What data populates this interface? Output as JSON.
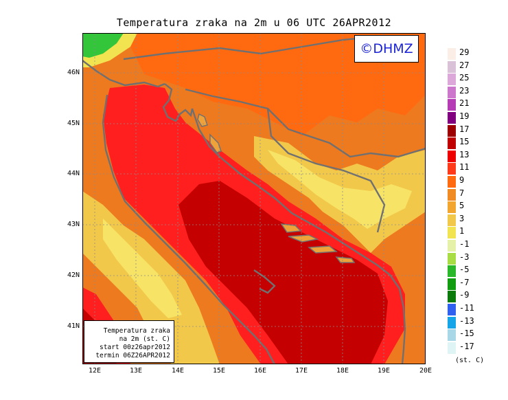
{
  "title": "Temperatura zraka na 2m u 06 UTC 26APR2012",
  "logo": "©DHMZ",
  "info_box": {
    "line1": "Temperatura zraka",
    "line2": "na 2m (st. C)",
    "line3": "start 00z26apr2012",
    "line4": "termin 06Z26APR2012"
  },
  "axes": {
    "lat_labels": [
      "46N",
      "45N",
      "44N",
      "43N",
      "42N",
      "41N"
    ],
    "lon_labels": [
      "12E",
      "13E",
      "14E",
      "15E",
      "16E",
      "17E",
      "18E",
      "19E",
      "20E"
    ]
  },
  "legend": {
    "unit": "(st. C)",
    "labels": [
      "29",
      "27",
      "25",
      "23",
      "21",
      "19",
      "17",
      "15",
      "13",
      "11",
      "9",
      "7",
      "5",
      "3",
      "1",
      "-1",
      "-3",
      "-5",
      "-7",
      "-9",
      "-11",
      "-13",
      "-15",
      "-17"
    ],
    "colors": [
      "#fbeee6",
      "#d9c2d8",
      "#dca8d9",
      "#cc77cc",
      "#b53cb5",
      "#800080",
      "#9c0000",
      "#c00000",
      "#ee0000",
      "#ff3a1a",
      "#ff6a10",
      "#f08a22",
      "#f2a630",
      "#f2c84b",
      "#f2e450",
      "#e5f0a8",
      "#a9dd44",
      "#2ab82a",
      "#129c12",
      "#0a7a0a",
      "#3060f0",
      "#16a4e8",
      "#a8d8e8",
      "#dff5f5"
    ]
  },
  "colors": {
    "land_base": "#f0a23a",
    "sea_deep": "#c30000",
    "sea_mid": "#ff1f1f",
    "coast_line": "#707070",
    "grid_line": "#8c8c8c",
    "highland": "#f7e05a",
    "cold_corner": "#33c53a",
    "logo_text": "#1a22d8"
  }
}
